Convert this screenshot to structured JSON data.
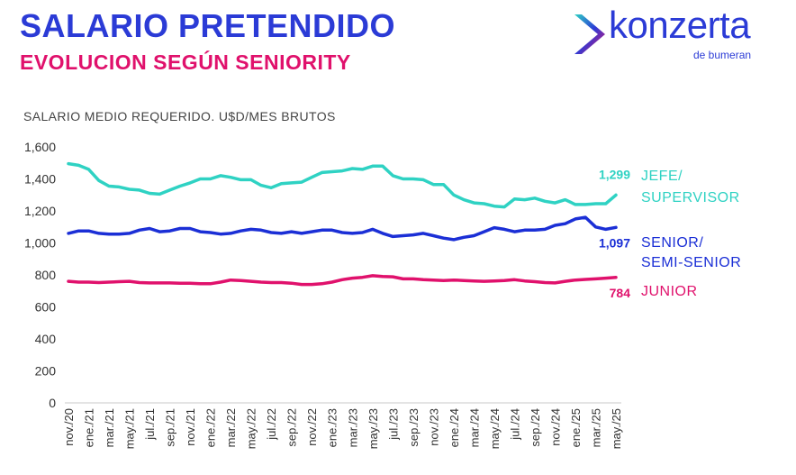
{
  "header": {
    "title": "SALARIO PRETENDIDO",
    "subtitle": "EVOLUCION SEGÚN SENIORITY"
  },
  "logo": {
    "name": "konzerta",
    "tagline": "de bumeran"
  },
  "colors": {
    "title": "#2b3bd6",
    "subtitle": "#e0116c",
    "jefe": "#2fd2c3",
    "senior": "#1b2fd6",
    "junior": "#e0116c",
    "axis_text": "#333333"
  },
  "chart_data": {
    "type": "line",
    "title": "SALARIO MEDIO REQUERIDO. U$D/MES BRUTOS",
    "xlabel": "",
    "ylabel": "",
    "ylim": [
      0,
      1600
    ],
    "yticks": [
      "0",
      "200",
      "400",
      "600",
      "800",
      "1,000",
      "1,200",
      "1,400",
      "1,600"
    ],
    "grid": false,
    "x": [
      "nov./20",
      "dic./20",
      "ene./21",
      "feb./21",
      "mar./21",
      "abr./21",
      "may./21",
      "jun./21",
      "jul./21",
      "ago./21",
      "sep./21",
      "oct./21",
      "nov./21",
      "dic./21",
      "ene./22",
      "feb./22",
      "mar./22",
      "abr./22",
      "may./22",
      "jun./22",
      "jul./22",
      "ago./22",
      "sep./22",
      "oct./22",
      "nov./22",
      "dic./22",
      "ene./23",
      "feb./23",
      "mar./23",
      "abr./23",
      "may./23",
      "jun./23",
      "jul./23",
      "ago./23",
      "sep./23",
      "oct./23",
      "nov./23",
      "dic./23",
      "ene./24",
      "feb./24",
      "mar./24",
      "abr./24",
      "may./24",
      "jun./24",
      "jul./24",
      "ago./24",
      "sep./24",
      "oct./24",
      "nov./24",
      "dic./24",
      "ene./25",
      "feb./25",
      "mar./25",
      "abr./25",
      "may./25"
    ],
    "xtick_labels": [
      "nov./20",
      "ene./21",
      "mar./21",
      "may./21",
      "jul./21",
      "sep./21",
      "nov./21",
      "ene./22",
      "mar./22",
      "may./22",
      "jul./22",
      "sep./22",
      "nov./22",
      "ene./23",
      "mar./23",
      "may./23",
      "jul./23",
      "sep./23",
      "nov./23",
      "ene./24",
      "mar./24",
      "may./24",
      "jul./24",
      "sep./24",
      "nov./24",
      "ene./25",
      "mar./25",
      "may./25"
    ],
    "series": [
      {
        "name": "JEFE/\nSUPERVISOR",
        "label_lines": [
          "JEFE/",
          "SUPERVISOR"
        ],
        "last_label": "1,299",
        "values": [
          1495,
          1485,
          1460,
          1390,
          1355,
          1350,
          1335,
          1330,
          1310,
          1305,
          1330,
          1355,
          1375,
          1400,
          1400,
          1420,
          1410,
          1395,
          1395,
          1360,
          1345,
          1370,
          1375,
          1380,
          1410,
          1440,
          1445,
          1450,
          1465,
          1460,
          1480,
          1480,
          1420,
          1400,
          1400,
          1395,
          1365,
          1365,
          1300,
          1270,
          1250,
          1245,
          1230,
          1225,
          1275,
          1270,
          1280,
          1260,
          1250,
          1270,
          1240,
          1240,
          1245,
          1245,
          1299
        ]
      },
      {
        "name": "SENIOR/\nSEMI-SENIOR",
        "label_lines": [
          "SENIOR/",
          "SEMI-SENIOR"
        ],
        "last_label": "1,097",
        "values": [
          1060,
          1075,
          1075,
          1060,
          1055,
          1055,
          1060,
          1080,
          1090,
          1070,
          1075,
          1090,
          1090,
          1070,
          1065,
          1055,
          1060,
          1075,
          1085,
          1080,
          1065,
          1060,
          1070,
          1060,
          1070,
          1080,
          1080,
          1065,
          1060,
          1065,
          1085,
          1060,
          1040,
          1045,
          1050,
          1060,
          1045,
          1030,
          1020,
          1035,
          1045,
          1070,
          1095,
          1085,
          1070,
          1080,
          1080,
          1085,
          1110,
          1120,
          1150,
          1160,
          1100,
          1085,
          1097
        ]
      },
      {
        "name": "JUNIOR",
        "label_lines": [
          "JUNIOR"
        ],
        "last_label": "784",
        "values": [
          760,
          755,
          755,
          752,
          755,
          758,
          760,
          752,
          750,
          750,
          750,
          748,
          748,
          745,
          745,
          755,
          768,
          765,
          760,
          755,
          752,
          752,
          748,
          740,
          740,
          745,
          755,
          770,
          780,
          785,
          795,
          790,
          788,
          775,
          775,
          770,
          768,
          765,
          768,
          765,
          762,
          760,
          762,
          765,
          770,
          762,
          758,
          752,
          750,
          760,
          768,
          772,
          775,
          780,
          784
        ]
      }
    ]
  }
}
